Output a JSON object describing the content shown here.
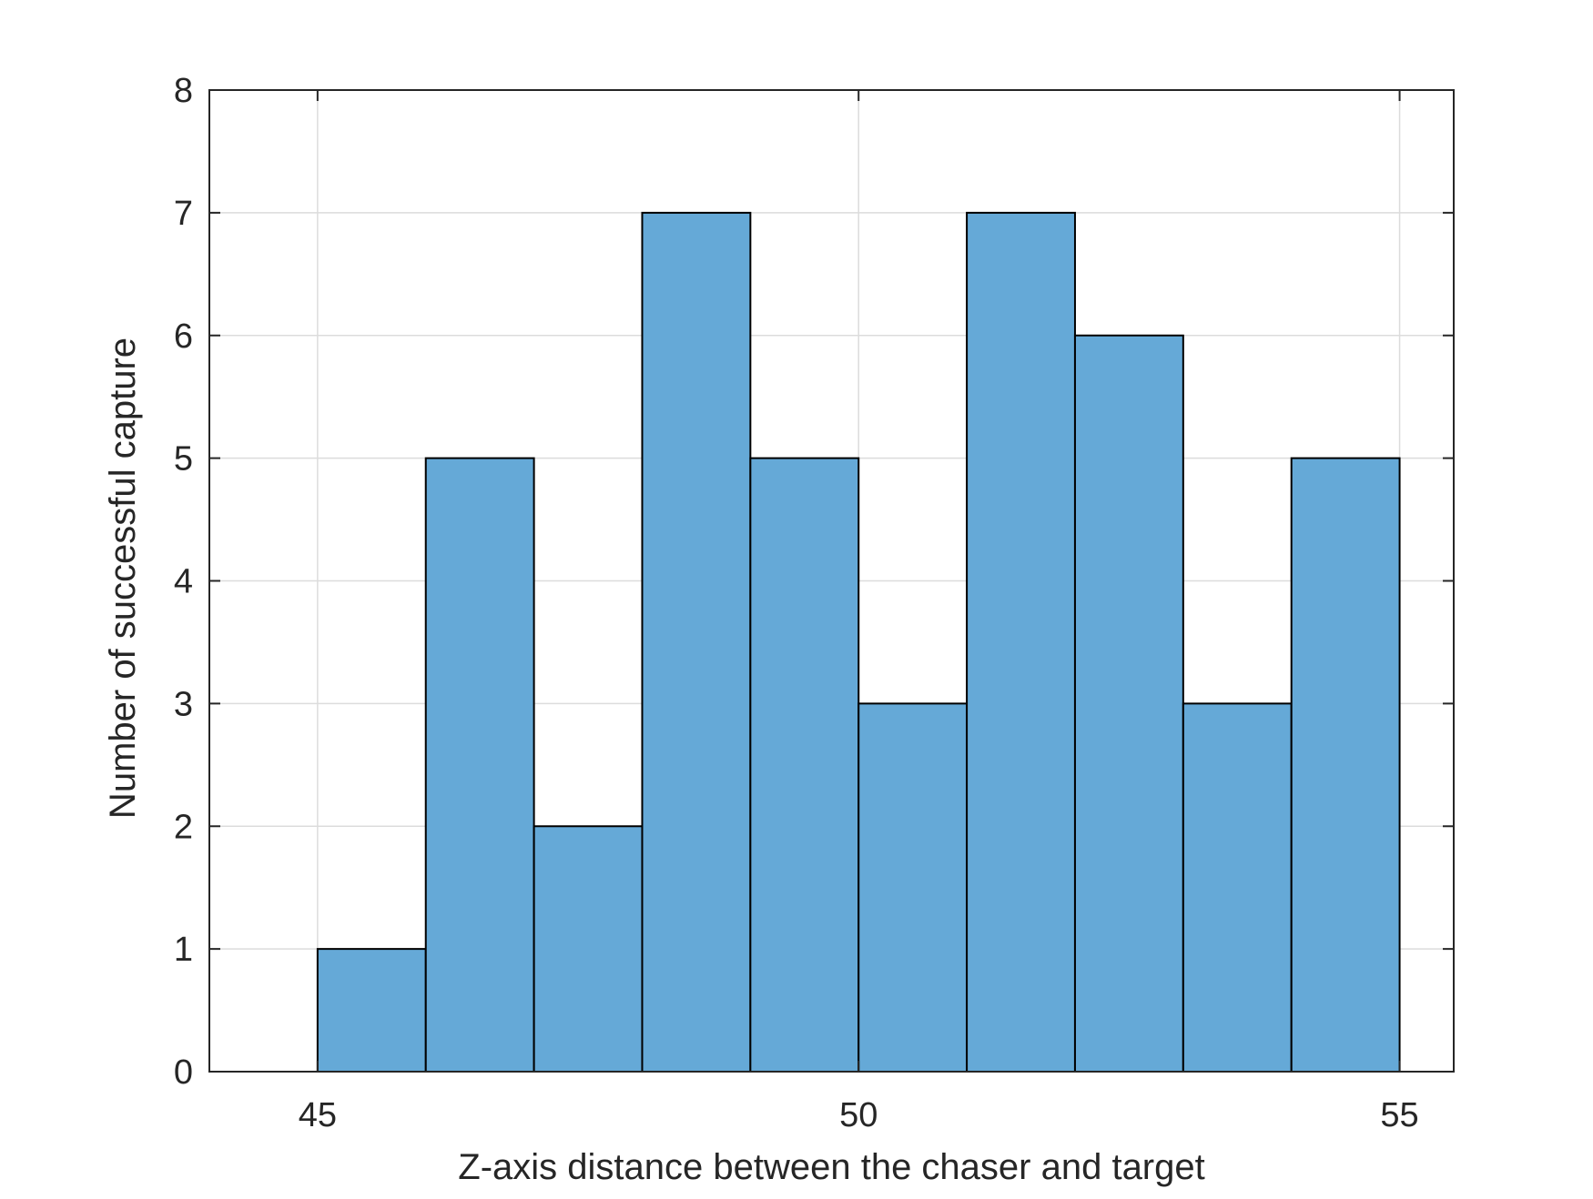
{
  "chart_data": {
    "type": "bar",
    "subtype": "histogram",
    "title": "",
    "xlabel": "Z-axis distance between the chaser and target",
    "ylabel": "Number of successful capture",
    "xlim": [
      44,
      55.5
    ],
    "ylim": [
      0,
      8
    ],
    "x_ticks": [
      45,
      50,
      55
    ],
    "y_ticks": [
      0,
      1,
      2,
      3,
      4,
      5,
      6,
      7,
      8
    ],
    "bin_edges": [
      45,
      46,
      47,
      48,
      49,
      50,
      51,
      52,
      53,
      54,
      55
    ],
    "values": [
      1,
      5,
      2,
      7,
      5,
      3,
      7,
      6,
      3,
      5
    ],
    "grid": true,
    "legend": "none",
    "colors": {
      "bar_fill": "#65a9d7",
      "bar_edge": "#000000",
      "axis": "#262626",
      "grid": "#dcdcdc"
    }
  }
}
